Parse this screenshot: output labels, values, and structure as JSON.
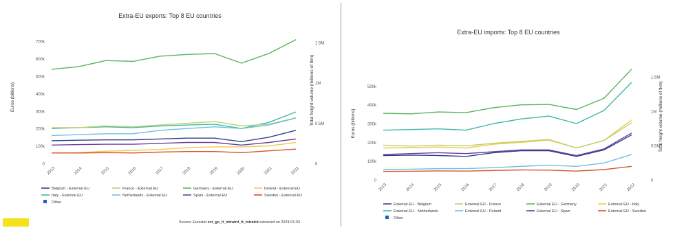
{
  "chart_data": [
    {
      "type": "line",
      "title": "Extra-EU exports: Top 8 EU countries",
      "ylabel": "Euros (billions)",
      "y2label": "Total freight volume (millions of tkm)",
      "categories": [
        "2013",
        "2014",
        "2015",
        "2016",
        "2017",
        "2018",
        "2019",
        "2020",
        "2021",
        "2022"
      ],
      "yticks": [
        "0",
        "100k",
        "200k",
        "300k",
        "400k",
        "500k",
        "600k",
        "700k"
      ],
      "y2ticks": [
        "0",
        "0.5M",
        "1M",
        "1.5M"
      ],
      "ylim": [
        0,
        760
      ],
      "grid": false,
      "legend_position": "bottom",
      "series": [
        {
          "name": "Germany - External EU",
          "color": "#5ab35a",
          "values": [
            540,
            555,
            590,
            585,
            615,
            625,
            630,
            575,
            630,
            710
          ]
        },
        {
          "name": "Italy - External EU",
          "color": "#3fb8a7",
          "values": [
            200,
            205,
            210,
            205,
            215,
            220,
            225,
            200,
            235,
            295
          ]
        },
        {
          "name": "France - External EU",
          "color": "#b8d36b",
          "values": [
            205,
            205,
            215,
            210,
            220,
            230,
            240,
            215,
            225,
            262
          ]
        },
        {
          "name": "Netherlands - External EU",
          "color": "#6fc0e0",
          "values": [
            160,
            165,
            170,
            170,
            190,
            200,
            210,
            200,
            220,
            260
          ]
        },
        {
          "name": "Belgium - External EU",
          "color": "#2e3f8f",
          "values": [
            130,
            133,
            135,
            135,
            140,
            145,
            145,
            125,
            150,
            190
          ]
        },
        {
          "name": "Spain - External EU",
          "color": "#6a3c9a",
          "values": [
            105,
            108,
            110,
            110,
            115,
            120,
            120,
            105,
            120,
            140
          ]
        },
        {
          "name": "Ireland - External EU",
          "color": "#f2c84b",
          "values": [
            60,
            62,
            70,
            75,
            80,
            90,
            95,
            95,
            100,
            120
          ]
        },
        {
          "name": "Sweden - External EU",
          "color": "#d9532c",
          "values": [
            60,
            60,
            62,
            60,
            65,
            68,
            68,
            62,
            72,
            82
          ]
        }
      ],
      "legend": [
        {
          "label": "Belgium - External EU",
          "color": "#2e3f8f"
        },
        {
          "label": "France - External EU",
          "color": "#b8d36b"
        },
        {
          "label": "Germany - External EU",
          "color": "#5ab35a"
        },
        {
          "label": "Ireland - External EU",
          "color": "#f2c84b"
        },
        {
          "label": "Italy - External EU",
          "color": "#3fb8a7"
        },
        {
          "label": "Netherlands - External EU",
          "color": "#6fc0e0"
        },
        {
          "label": "Spain - External EU",
          "color": "#6a3c9a"
        },
        {
          "label": "Sweden - External EU",
          "color": "#d9532c"
        }
      ],
      "extra_legend": {
        "label": "Other",
        "color": "#1f5fbf"
      },
      "footer": {
        "prefix": "Source: Eurostat",
        "dataset": "ext_go_lt_intratrd_tt_intratrd",
        "suffix": "extracted on 2023-03-03"
      }
    },
    {
      "type": "line",
      "title": "Extra-EU imports: Top 8 EU countries",
      "ylabel": "Euros (billions)",
      "y2label": "Total freight volume (millions of tkm)",
      "categories": [
        "2013",
        "2014",
        "2015",
        "2016",
        "2017",
        "2018",
        "2019",
        "2020",
        "2021",
        "2022"
      ],
      "yticks": [
        "0",
        "100k",
        "200k",
        "300k",
        "400k",
        "500k"
      ],
      "y2ticks": [
        "0",
        "0.5M",
        "1M",
        "1.5M"
      ],
      "ylim": [
        0,
        600
      ],
      "grid": false,
      "legend_position": "bottom",
      "series": [
        {
          "name": "External EU - Germany",
          "color": "#5ab35a",
          "values": [
            355,
            352,
            362,
            358,
            385,
            400,
            402,
            375,
            435,
            590
          ]
        },
        {
          "name": "External EU - Netherlands",
          "color": "#3fb8a7",
          "values": [
            265,
            268,
            272,
            265,
            300,
            325,
            340,
            300,
            370,
            520
          ]
        },
        {
          "name": "External EU - Italy",
          "color": "#f2c84b",
          "values": [
            170,
            172,
            175,
            170,
            190,
            200,
            212,
            170,
            210,
            320
          ]
        },
        {
          "name": "External EU - France",
          "color": "#b8d36b",
          "values": [
            185,
            180,
            185,
            182,
            195,
            205,
            215,
            170,
            210,
            305
          ]
        },
        {
          "name": "External EU - Spain",
          "color": "#6a3c9a",
          "values": [
            135,
            140,
            145,
            140,
            150,
            160,
            160,
            130,
            165,
            250
          ]
        },
        {
          "name": "External EU - Belgium",
          "color": "#2e3f8f",
          "values": [
            130,
            132,
            130,
            125,
            145,
            155,
            155,
            125,
            160,
            240
          ]
        },
        {
          "name": "External EU - Poland",
          "color": "#6fc0e0",
          "values": [
            55,
            57,
            60,
            60,
            65,
            72,
            78,
            72,
            90,
            135
          ]
        },
        {
          "name": "External EU - Sweden",
          "color": "#d9532c",
          "values": [
            45,
            46,
            48,
            47,
            50,
            53,
            52,
            47,
            55,
            72
          ]
        }
      ],
      "legend": [
        {
          "label": "External EU - Belgium",
          "color": "#2e3f8f"
        },
        {
          "label": "External EU - France",
          "color": "#b8d36b"
        },
        {
          "label": "External EU - Germany",
          "color": "#5ab35a"
        },
        {
          "label": "External EU - Italy",
          "color": "#f2c84b"
        },
        {
          "label": "External EU - Netherlands",
          "color": "#3fb8a7"
        },
        {
          "label": "External EU - Poland",
          "color": "#6fc0e0"
        },
        {
          "label": "External EU - Spain",
          "color": "#6a3c9a"
        },
        {
          "label": "External EU - Sweden",
          "color": "#d9532c"
        }
      ],
      "extra_legend": {
        "label": "Other",
        "color": "#1f5fbf"
      }
    }
  ]
}
